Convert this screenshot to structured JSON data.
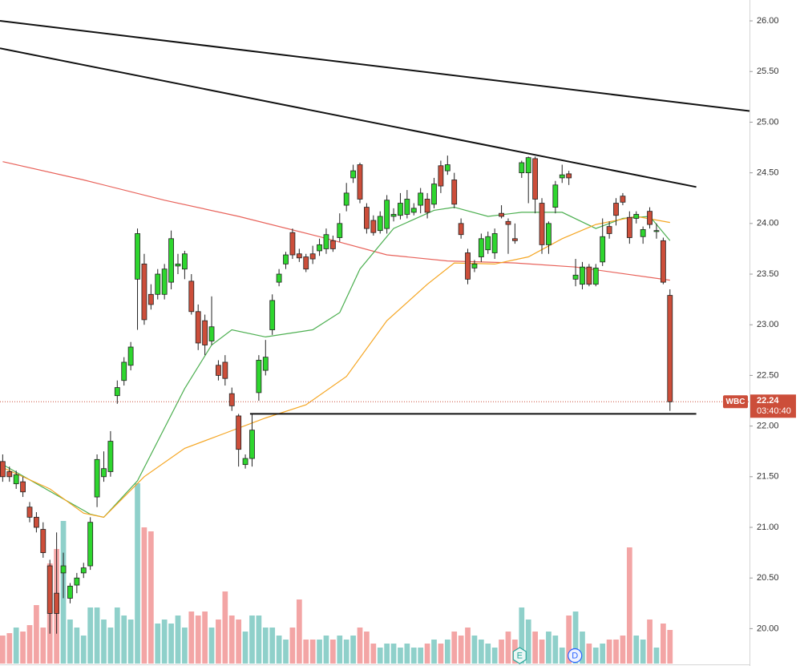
{
  "chart_data": {
    "type": "candlestick",
    "ylim": [
      19.655,
      26.206
    ],
    "xlim": [
      -0.4,
      110.8
    ],
    "yticks": [
      {
        "value": 20,
        "label": "20.00"
      },
      {
        "value": 20.5,
        "label": "20.50"
      },
      {
        "value": 21,
        "label": "21.00"
      },
      {
        "value": 21.5,
        "label": "21.50"
      },
      {
        "value": 22,
        "label": "22.00"
      },
      {
        "value": 22.5,
        "label": "22.50"
      },
      {
        "value": 23,
        "label": "23.00"
      },
      {
        "value": 23.5,
        "label": "23.50"
      },
      {
        "value": 24,
        "label": "24.00"
      },
      {
        "value": 24.5,
        "label": "24.50"
      },
      {
        "value": 25,
        "label": "25.00"
      },
      {
        "value": 25.5,
        "label": "25.50"
      },
      {
        "value": 26,
        "label": "26.00"
      }
    ],
    "colors": {
      "up": "#2ed62e",
      "down": "#cc4e3a",
      "volume_up": "#8fd0ca",
      "volume_down": "#f3a5a5",
      "border": "#222222"
    },
    "ohlc": [
      [
        21.65,
        21.72,
        21.45,
        21.5
      ],
      [
        21.55,
        21.6,
        21.45,
        21.5
      ],
      [
        21.43,
        21.56,
        21.38,
        21.52
      ],
      [
        21.45,
        21.5,
        21.3,
        21.35
      ],
      [
        21.2,
        21.25,
        21.05,
        21.1
      ],
      [
        21.1,
        21.15,
        20.95,
        21.0
      ],
      [
        20.98,
        21.05,
        20.7,
        20.75
      ],
      [
        20.62,
        20.68,
        19.95,
        20.15
      ],
      [
        20.35,
        20.95,
        19.95,
        20.15
      ],
      [
        20.55,
        20.75,
        20.3,
        20.62
      ],
      [
        20.3,
        20.45,
        20.25,
        20.42
      ],
      [
        20.43,
        20.55,
        20.35,
        20.5
      ],
      [
        20.55,
        20.65,
        20.5,
        20.6
      ],
      [
        20.62,
        21.1,
        20.58,
        21.05
      ],
      [
        21.3,
        21.72,
        21.2,
        21.67
      ],
      [
        21.5,
        21.75,
        21.45,
        21.58
      ],
      [
        21.55,
        21.95,
        21.5,
        21.85
      ],
      [
        22.3,
        22.45,
        22.22,
        22.38
      ],
      [
        22.45,
        22.68,
        22.4,
        22.63
      ],
      [
        22.6,
        22.83,
        22.55,
        22.78
      ],
      [
        23.45,
        23.95,
        22.95,
        23.9
      ],
      [
        23.6,
        23.7,
        23.0,
        23.05
      ],
      [
        23.3,
        23.4,
        23.15,
        23.2
      ],
      [
        23.3,
        23.55,
        23.25,
        23.5
      ],
      [
        23.3,
        23.6,
        23.25,
        23.55
      ],
      [
        23.42,
        23.93,
        23.35,
        23.85
      ],
      [
        23.58,
        23.7,
        23.5,
        23.6
      ],
      [
        23.55,
        23.73,
        23.45,
        23.7
      ],
      [
        23.43,
        23.5,
        23.1,
        23.13
      ],
      [
        23.13,
        23.2,
        22.75,
        22.82
      ],
      [
        23.04,
        23.1,
        22.7,
        22.8
      ],
      [
        22.84,
        23.28,
        22.8,
        22.98
      ],
      [
        22.6,
        22.65,
        22.45,
        22.5
      ],
      [
        22.63,
        22.7,
        22.4,
        22.47
      ],
      [
        22.32,
        22.38,
        22.15,
        22.2
      ],
      [
        22.1,
        22.12,
        21.6,
        21.77
      ],
      [
        21.62,
        21.72,
        21.58,
        21.68
      ],
      [
        21.68,
        22.12,
        21.6,
        21.96
      ],
      [
        22.33,
        22.7,
        22.25,
        22.65
      ],
      [
        22.55,
        22.85,
        22.5,
        22.68
      ],
      [
        22.95,
        23.3,
        22.9,
        23.24
      ],
      [
        23.42,
        23.55,
        23.38,
        23.5
      ],
      [
        23.6,
        23.72,
        23.55,
        23.69
      ],
      [
        23.91,
        23.95,
        23.65,
        23.69
      ],
      [
        23.7,
        23.75,
        23.62,
        23.66
      ],
      [
        23.67,
        23.7,
        23.52,
        23.55
      ],
      [
        23.7,
        23.78,
        23.6,
        23.65
      ],
      [
        23.73,
        23.85,
        23.68,
        23.79
      ],
      [
        23.75,
        23.95,
        23.7,
        23.89
      ],
      [
        23.83,
        23.88,
        23.72,
        23.75
      ],
      [
        23.86,
        24.1,
        23.82,
        24.0
      ],
      [
        24.18,
        24.4,
        24.12,
        24.3
      ],
      [
        24.45,
        24.58,
        24.4,
        24.52
      ],
      [
        24.58,
        24.6,
        24.2,
        24.24
      ],
      [
        24.16,
        24.2,
        23.9,
        23.95
      ],
      [
        24.03,
        24.08,
        23.88,
        23.91
      ],
      [
        23.93,
        24.12,
        23.9,
        24.07
      ],
      [
        23.95,
        24.28,
        23.9,
        24.23
      ],
      [
        24.07,
        24.15,
        24.02,
        24.09
      ],
      [
        24.08,
        24.3,
        24.04,
        24.2
      ],
      [
        24.09,
        24.33,
        24.05,
        24.24
      ],
      [
        24.11,
        24.2,
        24.08,
        24.15
      ],
      [
        24.18,
        24.35,
        24.1,
        24.3
      ],
      [
        24.24,
        24.3,
        24.05,
        24.11
      ],
      [
        24.19,
        24.45,
        24.15,
        24.39
      ],
      [
        24.57,
        24.62,
        24.3,
        24.37
      ],
      [
        24.52,
        24.67,
        24.48,
        24.58
      ],
      [
        24.43,
        24.5,
        24.15,
        24.19
      ],
      [
        24.0,
        24.05,
        23.85,
        23.89
      ],
      [
        23.71,
        23.75,
        23.4,
        23.45
      ],
      [
        23.56,
        23.64,
        23.52,
        23.6
      ],
      [
        23.67,
        23.9,
        23.62,
        23.85
      ],
      [
        23.74,
        23.92,
        23.7,
        23.87
      ],
      [
        23.71,
        23.95,
        23.65,
        23.9
      ],
      [
        24.1,
        24.18,
        24.05,
        24.07
      ],
      [
        24.02,
        24.05,
        23.7,
        23.99
      ],
      [
        23.85,
        24.0,
        23.8,
        23.83
      ],
      [
        24.5,
        24.62,
        24.45,
        24.6
      ],
      [
        24.5,
        24.66,
        24.2,
        24.65
      ],
      [
        24.64,
        24.66,
        24.1,
        24.24
      ],
      [
        24.2,
        24.25,
        23.7,
        23.79
      ],
      [
        23.79,
        24.02,
        23.7,
        24.0
      ],
      [
        24.16,
        24.42,
        24.1,
        24.38
      ],
      [
        24.45,
        24.58,
        24.4,
        24.48
      ],
      [
        24.49,
        24.52,
        24.38,
        24.45
      ],
      [
        23.45,
        23.65,
        23.38,
        23.49
      ],
      [
        23.4,
        23.62,
        23.35,
        23.57
      ],
      [
        23.57,
        23.6,
        23.38,
        23.4
      ],
      [
        23.4,
        23.6,
        23.38,
        23.56
      ],
      [
        23.62,
        24.05,
        23.58,
        23.87
      ],
      [
        23.97,
        24.02,
        23.85,
        23.9
      ],
      [
        24.2,
        24.25,
        23.98,
        24.08
      ],
      [
        24.27,
        24.3,
        24.18,
        24.21
      ],
      [
        24.06,
        24.12,
        23.8,
        23.86
      ],
      [
        24.05,
        24.12,
        24.0,
        24.09
      ],
      [
        23.87,
        23.97,
        23.8,
        23.94
      ],
      [
        24.12,
        24.16,
        23.95,
        23.99
      ],
      [
        23.92,
        24.0,
        23.85,
        23.93
      ],
      [
        23.83,
        23.86,
        23.4,
        23.42
      ],
      [
        23.29,
        23.35,
        22.15,
        22.24
      ]
    ],
    "volume": [
      35,
      38,
      45,
      40,
      48,
      73,
      45,
      125,
      143,
      178,
      55,
      45,
      35,
      70,
      70,
      55,
      45,
      70,
      60,
      55,
      225,
      170,
      165,
      50,
      55,
      50,
      60,
      45,
      65,
      60,
      65,
      45,
      55,
      90,
      60,
      55,
      40,
      60,
      60,
      45,
      45,
      35,
      30,
      45,
      80,
      30,
      30,
      30,
      35,
      30,
      35,
      30,
      35,
      45,
      40,
      25,
      20,
      25,
      25,
      20,
      25,
      20,
      20,
      25,
      30,
      25,
      30,
      40,
      35,
      45,
      35,
      30,
      25,
      20,
      30,
      40,
      30,
      70,
      55,
      40,
      30,
      40,
      35,
      20,
      60,
      65,
      40,
      25,
      20,
      25,
      30,
      30,
      35,
      145,
      35,
      30,
      55,
      20,
      50,
      42
    ],
    "lines": [
      {
        "color": "#e8625a",
        "x": [
          0,
          12,
          24,
          35,
          47,
          57,
          66,
          76,
          85,
          99
        ],
        "values": [
          24.61,
          24.43,
          24.23,
          24.07,
          23.87,
          23.69,
          23.63,
          23.61,
          23.57,
          23.44
        ]
      },
      {
        "color": "#4caf50",
        "x": [
          0,
          13,
          15,
          20,
          27,
          31,
          34,
          39,
          46,
          50,
          53,
          58,
          64,
          67,
          72,
          77,
          83,
          88,
          92,
          96,
          99
        ],
        "values": [
          21.62,
          21.13,
          21.1,
          21.46,
          22.37,
          22.8,
          22.95,
          22.88,
          22.95,
          23.12,
          23.55,
          23.95,
          24.13,
          24.16,
          24.07,
          24.11,
          24.11,
          23.95,
          24.05,
          24.07,
          23.83
        ]
      },
      {
        "color": "#f5a623",
        "x": [
          0,
          7,
          12,
          15,
          21,
          27,
          33,
          39,
          45,
          51,
          57,
          63,
          67,
          73,
          78,
          83,
          88,
          94,
          99
        ],
        "values": [
          21.59,
          21.38,
          21.14,
          21.1,
          21.5,
          21.78,
          21.93,
          22.08,
          22.21,
          22.49,
          23.04,
          23.4,
          23.61,
          23.6,
          23.67,
          23.85,
          23.99,
          24.07,
          24.01
        ]
      }
    ],
    "trendlines": [
      {
        "color": "#111111",
        "x": [
          -0.4,
          110.8
        ],
        "values": [
          26.0,
          25.11
        ]
      },
      {
        "color": "#111111",
        "x": [
          -0.4,
          102.9
        ],
        "values": [
          25.73,
          24.36
        ]
      },
      {
        "color": "#111111",
        "x": [
          36.7,
          102.9
        ],
        "values": [
          22.12,
          22.12
        ]
      }
    ],
    "last_price": {
      "symbol": "WBC",
      "value": 22.24,
      "countdown": "03:40:40",
      "color": "#cc4e3a"
    },
    "events": [
      {
        "label": "E",
        "x": 76.7,
        "color": "#2aa79b"
      },
      {
        "label": "D",
        "x": 84.9,
        "color": "#2962ff"
      }
    ]
  }
}
